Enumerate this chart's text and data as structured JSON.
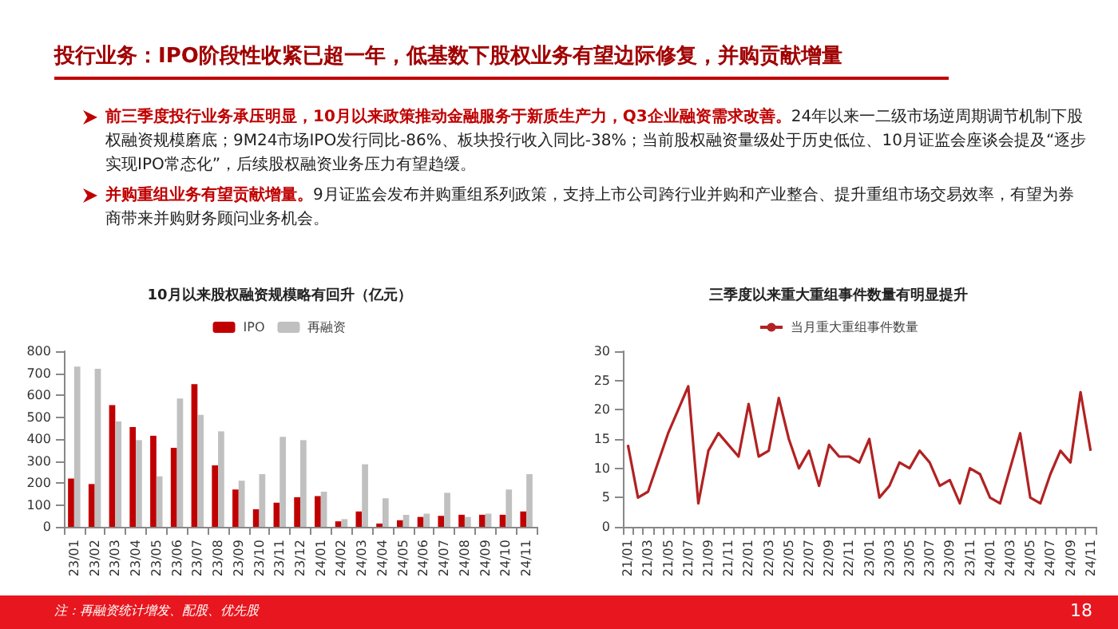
{
  "chart_data": [
    {
      "type": "bar",
      "title": "10月以来股权融资规模略有回升（亿元）",
      "categories": [
        "23/01",
        "23/02",
        "23/03",
        "23/04",
        "23/05",
        "23/06",
        "23/07",
        "23/08",
        "23/09",
        "23/10",
        "23/11",
        "23/12",
        "24/01",
        "24/02",
        "24/03",
        "24/04",
        "24/05",
        "24/06",
        "24/07",
        "24/08",
        "24/09",
        "24/10",
        "24/11"
      ],
      "series": [
        {
          "name": "IPO",
          "color": "#c00000",
          "values": [
            220,
            195,
            555,
            455,
            415,
            360,
            650,
            280,
            170,
            80,
            110,
            135,
            140,
            25,
            70,
            15,
            30,
            45,
            50,
            55,
            55,
            55,
            70
          ]
        },
        {
          "name": "再融资",
          "color": "#c0c0c0",
          "values": [
            730,
            720,
            480,
            395,
            230,
            585,
            510,
            435,
            210,
            240,
            410,
            395,
            160,
            35,
            285,
            130,
            55,
            60,
            155,
            45,
            60,
            170,
            240
          ]
        }
      ],
      "ylim": [
        0,
        800
      ],
      "yticks": [
        0,
        100,
        200,
        300,
        400,
        500,
        600,
        700,
        800
      ],
      "grid": false,
      "legend": "top",
      "annotations": [
        "投行业务：IPO阶段性收紧已超一年，低基数下股权业务有望边际修复，并购贡献增量",
        "前三季度投行业务承压明显，10月以来政策推动金融服务于新质生产力，Q3企业融资需求改善。",
        "24年以来一二级市场逆周期调节机制下股权融资规模磨底；9M24市场IPO发行同比-86%、板块投行收入同比-38%；当前股权融资量级处于历史低位、10月证监会座谈会提及“逐步实现IPO常态化”，后续股权融资业务压力有望趋缓。",
        "并购重组业务有望贡献增量。",
        "9月证监会发布并购重组系列政策，支持上市公司跨行业并购和产业整合、提升重组市场交易效率，有望为券商带来并购财务顾问业务机会。",
        "注：再融资统计增发、配股、优先股",
        "18"
      ]
    },
    {
      "type": "line",
      "title": "三季度以来重大重组事件数量有明显提升",
      "categories": [
        "21/01",
        null,
        "21/03",
        null,
        "21/05",
        null,
        "21/07",
        null,
        "21/09",
        null,
        "21/11",
        null,
        "22/01",
        null,
        "22/03",
        null,
        "22/05",
        null,
        "22/07",
        null,
        "22/09",
        null,
        "22/11",
        null,
        "23/01",
        null,
        "23/03",
        null,
        "23/05",
        null,
        "23/07",
        null,
        "23/09",
        null,
        "23/11",
        null,
        "24/01",
        null,
        "24/03",
        null,
        "24/05",
        null,
        "24/07",
        null,
        "24/09",
        null,
        "24/11"
      ],
      "series": [
        {
          "name": "当月重大重组事件数量",
          "color": "#b22222",
          "values": [
            14,
            5,
            6,
            11,
            16,
            20,
            24,
            4,
            13,
            16,
            14,
            12,
            21,
            12,
            13,
            22,
            15,
            10,
            13,
            7,
            14,
            12,
            12,
            11,
            15,
            5,
            7,
            11,
            10,
            13,
            11,
            7,
            8,
            4,
            10,
            9,
            5,
            4,
            10,
            16,
            5,
            4,
            9,
            13,
            11,
            23,
            13
          ]
        }
      ],
      "ylim": [
        0,
        30
      ],
      "yticks": [
        0,
        5,
        10,
        15,
        20,
        25,
        30
      ],
      "grid": false,
      "legend": "top",
      "marker": "none",
      "line_style": "solid"
    }
  ]
}
